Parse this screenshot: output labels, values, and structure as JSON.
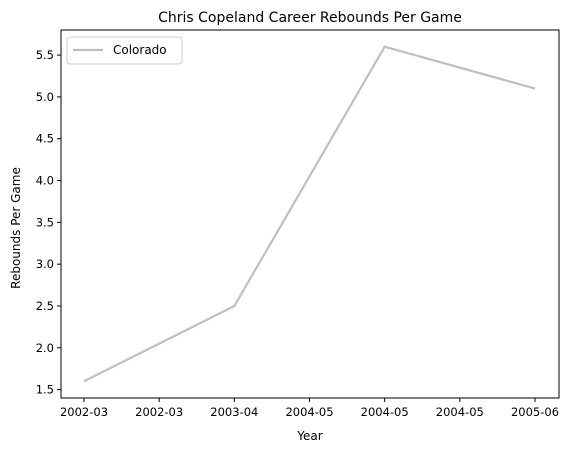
{
  "chart_data": {
    "type": "line",
    "title": "Chris Copeland Career Rebounds Per Game",
    "xlabel": "Year",
    "ylabel": "Rebounds Per Game",
    "x_tick_labels": [
      "2002-03",
      "2002-03",
      "2003-04",
      "2004-05",
      "2004-05",
      "2004-05",
      "2005-06"
    ],
    "y_ticks": [
      "1.5",
      "2.0",
      "2.5",
      "3.0",
      "3.5",
      "4.0",
      "4.5",
      "5.0",
      "5.5"
    ],
    "ylim": [
      1.4,
      5.8
    ],
    "grid": false,
    "legend_position": "upper-left",
    "series": [
      {
        "name": "Colorado",
        "color": "#bfbfbf",
        "x": [
          "2002-03",
          "2003-04",
          "2004-05",
          "2005-06"
        ],
        "values": [
          1.6,
          2.5,
          5.6,
          5.1
        ]
      }
    ]
  }
}
